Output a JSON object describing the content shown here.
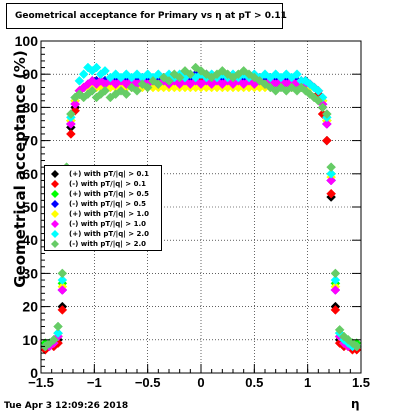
{
  "title": "Geometrical acceptance for Primary vs    η at pT > 0.11",
  "timestamp": "Tue Apr  3 12:09:26 2018",
  "chart_data": {
    "type": "scatter",
    "title": "Geometrical acceptance for Primary vs    η at pT > 0.11",
    "xlabel": "η",
    "ylabel": "Geometrical acceptance (%)",
    "xlim": [
      -1.5,
      1.5
    ],
    "ylim": [
      0,
      100
    ],
    "x_ticks": [
      -1.5,
      -1,
      -0.5,
      0,
      0.5,
      1,
      1.5
    ],
    "x_tick_labels": [
      "−1.5",
      "−1",
      "−0.5",
      "0",
      "0.5",
      "1",
      "1.5"
    ],
    "y_ticks": [
      0,
      10,
      20,
      30,
      40,
      50,
      60,
      70,
      80,
      90,
      100
    ],
    "y_tick_labels": [
      "0",
      "10",
      "20",
      "30",
      "40",
      "50",
      "60",
      "70",
      "80",
      "90",
      "100"
    ],
    "grid": true,
    "legend_position": "left-middle",
    "x": [
      -1.46,
      -1.42,
      -1.38,
      -1.34,
      -1.3,
      -1.26,
      -1.22,
      -1.18,
      -1.14,
      -1.1,
      -1.06,
      -1.02,
      -0.98,
      -0.94,
      -0.9,
      -0.85,
      -0.8,
      -0.75,
      -0.7,
      -0.65,
      -0.6,
      -0.55,
      -0.5,
      -0.45,
      -0.4,
      -0.35,
      -0.3,
      -0.25,
      -0.2,
      -0.15,
      -0.1,
      -0.05,
      0.0,
      0.05,
      0.1,
      0.15,
      0.2,
      0.25,
      0.3,
      0.35,
      0.4,
      0.45,
      0.5,
      0.55,
      0.6,
      0.65,
      0.7,
      0.75,
      0.8,
      0.85,
      0.9,
      0.94,
      0.98,
      1.02,
      1.06,
      1.1,
      1.14,
      1.18,
      1.22,
      1.26,
      1.3,
      1.34,
      1.38,
      1.42,
      1.46
    ],
    "series": [
      {
        "name": "(+) with pT/|q| > 0.1",
        "color": "#000000",
        "values": [
          8,
          8,
          9,
          10,
          20,
          55,
          74,
          80,
          84,
          86,
          87,
          88,
          88,
          88,
          88,
          88,
          88,
          88,
          88,
          88,
          88,
          88,
          88,
          88,
          89,
          89,
          89,
          89,
          89,
          89,
          89,
          89,
          89,
          89,
          89,
          89,
          89,
          89,
          89,
          89,
          89,
          89,
          89,
          89,
          89,
          89,
          89,
          89,
          88,
          88,
          88,
          88,
          88,
          87,
          86,
          84,
          80,
          70,
          53,
          20,
          10,
          9,
          8,
          8,
          8
        ]
      },
      {
        "name": "(-) with pT/|q| > 0.1",
        "color": "#ff0000",
        "values": [
          7,
          8,
          8,
          9,
          19,
          54,
          72,
          79,
          84,
          86,
          87,
          87,
          88,
          88,
          88,
          88,
          88,
          88,
          88,
          88,
          88,
          88,
          88,
          89,
          89,
          89,
          89,
          89,
          89,
          89,
          89,
          89,
          89,
          89,
          89,
          89,
          89,
          89,
          89,
          89,
          89,
          89,
          89,
          89,
          89,
          89,
          89,
          89,
          88,
          88,
          88,
          88,
          87,
          87,
          86,
          84,
          78,
          70,
          54,
          19,
          9,
          8,
          8,
          7,
          7
        ]
      },
      {
        "name": "(+) with pT/|q| > 0.5",
        "color": "#00ff00",
        "values": [
          9,
          9,
          10,
          12,
          27,
          60,
          76,
          82,
          85,
          86,
          87,
          88,
          88,
          88,
          88,
          88,
          88,
          88,
          88,
          88,
          88,
          88,
          88,
          89,
          89,
          89,
          89,
          89,
          89,
          89,
          89,
          89,
          90,
          89,
          89,
          89,
          89,
          89,
          89,
          89,
          89,
          89,
          89,
          89,
          89,
          89,
          89,
          89,
          88,
          88,
          88,
          88,
          88,
          87,
          86,
          85,
          82,
          76,
          60,
          27,
          12,
          10,
          9,
          9,
          9
        ]
      },
      {
        "name": "(-) with pT/|q| > 0.5",
        "color": "#0000ff",
        "values": [
          8,
          8,
          9,
          11,
          25,
          58,
          75,
          81,
          85,
          86,
          87,
          88,
          88,
          88,
          88,
          88,
          88,
          88,
          88,
          88,
          89,
          89,
          89,
          89,
          89,
          89,
          89,
          89,
          89,
          89,
          89,
          90,
          90,
          90,
          89,
          89,
          89,
          89,
          89,
          89,
          89,
          89,
          89,
          89,
          89,
          89,
          89,
          89,
          88,
          88,
          88,
          88,
          88,
          87,
          86,
          85,
          81,
          75,
          58,
          25,
          11,
          9,
          8,
          8,
          8
        ]
      },
      {
        "name": "(+) with pT/|q| > 1.0",
        "color": "#ffff00",
        "values": [
          8,
          8,
          9,
          11,
          26,
          59,
          76,
          82,
          85,
          86,
          86,
          86,
          86,
          86,
          86,
          86,
          86,
          86,
          86,
          86,
          86,
          86,
          86,
          86,
          86,
          86,
          86,
          86,
          86,
          86,
          86,
          86,
          86,
          86,
          86,
          86,
          86,
          86,
          86,
          86,
          86,
          86,
          86,
          86,
          86,
          86,
          86,
          86,
          86,
          86,
          86,
          86,
          86,
          86,
          86,
          85,
          82,
          76,
          59,
          26,
          11,
          9,
          8,
          8,
          8
        ]
      },
      {
        "name": "(-) with pT/|q| > 1.0",
        "color": "#ff00ff",
        "values": [
          8,
          8,
          9,
          11,
          25,
          58,
          75,
          81,
          85,
          86,
          87,
          88,
          87,
          88,
          87,
          88,
          87,
          88,
          87,
          88,
          87,
          88,
          87,
          88,
          87,
          88,
          87,
          88,
          87,
          88,
          87,
          88,
          87,
          88,
          87,
          88,
          87,
          88,
          87,
          88,
          87,
          88,
          87,
          88,
          87,
          88,
          87,
          88,
          87,
          88,
          87,
          88,
          87,
          87,
          86,
          85,
          81,
          75,
          58,
          25,
          11,
          9,
          8,
          8,
          8
        ]
      },
      {
        "name": "(+) with pT/|q| > 2.0",
        "color": "#00ffff",
        "values": [
          8,
          9,
          10,
          12,
          28,
          60,
          77,
          83,
          88,
          90,
          92,
          91,
          92,
          90,
          91,
          89,
          90,
          89,
          90,
          89,
          90,
          89,
          90,
          89,
          90,
          89,
          90,
          89,
          90,
          89,
          90,
          89,
          90,
          89,
          90,
          89,
          90,
          89,
          90,
          89,
          90,
          89,
          90,
          89,
          90,
          89,
          90,
          89,
          90,
          89,
          90,
          88,
          88,
          87,
          86,
          85,
          83,
          77,
          60,
          28,
          12,
          10,
          9,
          8,
          8
        ]
      },
      {
        "name": "(-) with pT/|q| > 2.0",
        "color": "#66cc66",
        "values": [
          8,
          9,
          10,
          14,
          30,
          62,
          78,
          83,
          84,
          83,
          84,
          85,
          83,
          84,
          85,
          83,
          84,
          85,
          84,
          86,
          85,
          87,
          86,
          88,
          87,
          89,
          88,
          90,
          89,
          91,
          90,
          92,
          91,
          90,
          89,
          90,
          91,
          90,
          89,
          90,
          91,
          90,
          89,
          88,
          87,
          86,
          85,
          86,
          85,
          86,
          85,
          86,
          85,
          84,
          83,
          82,
          80,
          78,
          62,
          30,
          13,
          11,
          10,
          9,
          8
        ]
      }
    ]
  }
}
